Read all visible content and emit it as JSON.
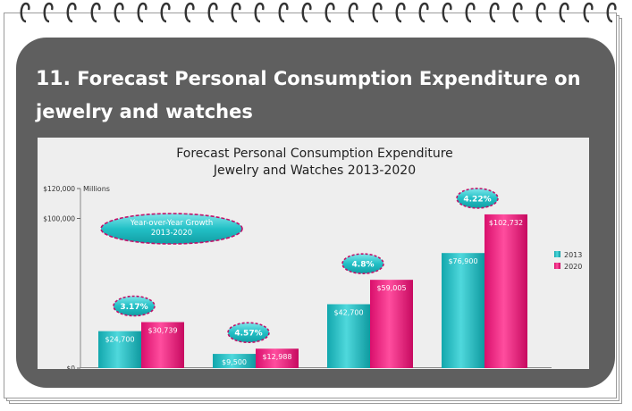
{
  "page": {
    "number": "11.",
    "title": "Forecast Personal Consumption Expenditure on jewelry and watches"
  },
  "colors": {
    "card": "#5f5f5f",
    "series_2013": "#19b2b8",
    "series_2020": "#e8187a",
    "bubble_border": "#c0126a"
  },
  "chart_data": {
    "type": "bar",
    "title": [
      "Forecast Personal Consumption Expenditure",
      "Jewelry and Watches 2013-2020"
    ],
    "unit_label": "Millions",
    "ylim": [
      0,
      120000
    ],
    "yticks": [
      {
        "value": 0,
        "label": "$0"
      },
      {
        "value": 100000,
        "label": "$100,000"
      },
      {
        "value": 120000,
        "label": "$120,000"
      }
    ],
    "categories": [
      "",
      "",
      "",
      ""
    ],
    "series": [
      {
        "name": "2013",
        "values": [
          24700,
          9500,
          42700,
          76900
        ],
        "labels": [
          "$24,700",
          "$9,500",
          "$42,700",
          "$76,900"
        ]
      },
      {
        "name": "2020",
        "values": [
          30739,
          12988,
          59005,
          102732
        ],
        "labels": [
          "$30,739",
          "$12,988",
          "$59,005",
          "$102,732"
        ]
      }
    ],
    "growth": [
      "3.17%",
      "4.57%",
      "4.8%",
      "4.22%"
    ],
    "growth_legend": [
      "Year-over-Year Growth",
      "2013-2020"
    ],
    "legend_position": "right",
    "grid": false
  }
}
